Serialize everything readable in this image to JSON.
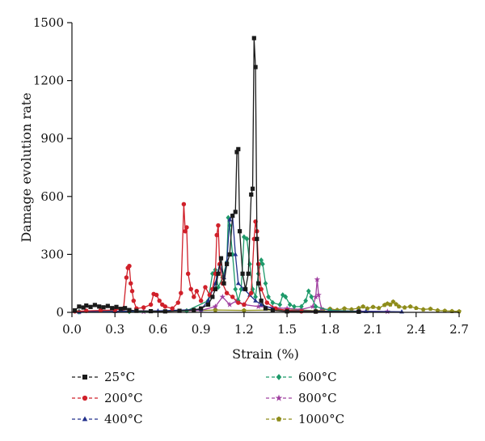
{
  "chart_data": {
    "type": "line",
    "title": "",
    "xlabel": "Strain (%)",
    "ylabel": "Damage evolution rate",
    "xlim": [
      0,
      2.7
    ],
    "ylim": [
      0,
      1500
    ],
    "xticks": [
      "0.0",
      "0.3",
      "0.6",
      "0.9",
      "1.2",
      "1.5",
      "1.8",
      "2.1",
      "2.4",
      "2.7"
    ],
    "yticks": [
      "0",
      "300",
      "600",
      "900",
      "1200",
      "1500"
    ],
    "grid": false,
    "legend_position": "bottom",
    "series": [
      {
        "name": "25°C",
        "color": "#1a1a1a",
        "marker": "square",
        "points": [
          [
            0.02,
            10
          ],
          [
            0.05,
            30
          ],
          [
            0.08,
            25
          ],
          [
            0.1,
            35
          ],
          [
            0.13,
            28
          ],
          [
            0.16,
            38
          ],
          [
            0.19,
            30
          ],
          [
            0.22,
            26
          ],
          [
            0.25,
            33
          ],
          [
            0.28,
            22
          ],
          [
            0.31,
            28
          ],
          [
            0.34,
            18
          ],
          [
            0.37,
            22
          ],
          [
            0.4,
            12
          ],
          [
            0.45,
            8
          ],
          [
            0.55,
            6
          ],
          [
            0.65,
            5
          ],
          [
            0.75,
            8
          ],
          [
            0.85,
            12
          ],
          [
            0.9,
            20
          ],
          [
            0.95,
            40
          ],
          [
            0.98,
            80
          ],
          [
            1.0,
            120
          ],
          [
            1.02,
            200
          ],
          [
            1.04,
            280
          ],
          [
            1.06,
            150
          ],
          [
            1.08,
            250
          ],
          [
            1.1,
            300
          ],
          [
            1.12,
            500
          ],
          [
            1.14,
            520
          ],
          [
            1.15,
            830
          ],
          [
            1.16,
            845
          ],
          [
            1.17,
            420
          ],
          [
            1.19,
            200
          ],
          [
            1.21,
            120
          ],
          [
            1.23,
            200
          ],
          [
            1.25,
            610
          ],
          [
            1.26,
            640
          ],
          [
            1.27,
            1420
          ],
          [
            1.28,
            1270
          ],
          [
            1.29,
            380
          ],
          [
            1.3,
            150
          ],
          [
            1.32,
            60
          ],
          [
            1.35,
            20
          ],
          [
            1.4,
            10
          ],
          [
            1.5,
            5
          ],
          [
            1.7,
            4
          ],
          [
            2.0,
            3
          ]
        ]
      },
      {
        "name": "200°C",
        "color": "#d0202a",
        "marker": "circle",
        "points": [
          [
            0.02,
            5
          ],
          [
            0.1,
            8
          ],
          [
            0.2,
            10
          ],
          [
            0.3,
            12
          ],
          [
            0.36,
            20
          ],
          [
            0.38,
            180
          ],
          [
            0.39,
            230
          ],
          [
            0.4,
            240
          ],
          [
            0.41,
            150
          ],
          [
            0.42,
            110
          ],
          [
            0.43,
            60
          ],
          [
            0.45,
            20
          ],
          [
            0.5,
            25
          ],
          [
            0.55,
            40
          ],
          [
            0.57,
            95
          ],
          [
            0.59,
            90
          ],
          [
            0.61,
            60
          ],
          [
            0.63,
            40
          ],
          [
            0.65,
            30
          ],
          [
            0.7,
            20
          ],
          [
            0.74,
            50
          ],
          [
            0.76,
            100
          ],
          [
            0.78,
            560
          ],
          [
            0.79,
            420
          ],
          [
            0.8,
            440
          ],
          [
            0.81,
            200
          ],
          [
            0.83,
            120
          ],
          [
            0.85,
            80
          ],
          [
            0.87,
            110
          ],
          [
            0.9,
            60
          ],
          [
            0.93,
            130
          ],
          [
            0.96,
            90
          ],
          [
            0.98,
            120
          ],
          [
            1.0,
            200
          ],
          [
            1.01,
            400
          ],
          [
            1.02,
            450
          ],
          [
            1.03,
            250
          ],
          [
            1.05,
            150
          ],
          [
            1.08,
            100
          ],
          [
            1.12,
            80
          ],
          [
            1.16,
            50
          ],
          [
            1.2,
            40
          ],
          [
            1.25,
            100
          ],
          [
            1.27,
            380
          ],
          [
            1.28,
            470
          ],
          [
            1.29,
            420
          ],
          [
            1.3,
            250
          ],
          [
            1.32,
            120
          ],
          [
            1.36,
            50
          ],
          [
            1.42,
            20
          ],
          [
            1.5,
            10
          ],
          [
            1.6,
            5
          ],
          [
            1.7,
            4
          ]
        ]
      },
      {
        "name": "400°C",
        "color": "#23318c",
        "marker": "triangle",
        "points": [
          [
            0.05,
            3
          ],
          [
            0.3,
            5
          ],
          [
            0.6,
            8
          ],
          [
            0.9,
            15
          ],
          [
            0.95,
            60
          ],
          [
            1.0,
            150
          ],
          [
            1.03,
            250
          ],
          [
            1.06,
            180
          ],
          [
            1.08,
            260
          ],
          [
            1.1,
            480
          ],
          [
            1.12,
            500
          ],
          [
            1.14,
            300
          ],
          [
            1.16,
            150
          ],
          [
            1.2,
            120
          ],
          [
            1.24,
            90
          ],
          [
            1.28,
            60
          ],
          [
            1.32,
            40
          ],
          [
            1.4,
            20
          ],
          [
            1.5,
            10
          ],
          [
            1.7,
            6
          ],
          [
            2.0,
            4
          ],
          [
            2.05,
            5
          ],
          [
            2.3,
            3
          ]
        ]
      },
      {
        "name": "600°C",
        "color": "#1e9a6a",
        "marker": "diamond",
        "points": [
          [
            0.05,
            2
          ],
          [
            0.4,
            4
          ],
          [
            0.8,
            8
          ],
          [
            0.95,
            60
          ],
          [
            0.98,
            200
          ],
          [
            1.0,
            220
          ],
          [
            1.02,
            130
          ],
          [
            1.05,
            180
          ],
          [
            1.08,
            260
          ],
          [
            1.09,
            490
          ],
          [
            1.1,
            450
          ],
          [
            1.12,
            300
          ],
          [
            1.14,
            120
          ],
          [
            1.16,
            60
          ],
          [
            1.18,
            120
          ],
          [
            1.2,
            390
          ],
          [
            1.22,
            380
          ],
          [
            1.24,
            250
          ],
          [
            1.26,
            120
          ],
          [
            1.28,
            80
          ],
          [
            1.3,
            200
          ],
          [
            1.32,
            270
          ],
          [
            1.33,
            250
          ],
          [
            1.35,
            150
          ],
          [
            1.37,
            80
          ],
          [
            1.4,
            50
          ],
          [
            1.45,
            40
          ],
          [
            1.47,
            90
          ],
          [
            1.49,
            80
          ],
          [
            1.52,
            40
          ],
          [
            1.55,
            30
          ],
          [
            1.6,
            30
          ],
          [
            1.63,
            60
          ],
          [
            1.65,
            110
          ],
          [
            1.67,
            80
          ],
          [
            1.7,
            30
          ],
          [
            1.8,
            10
          ],
          [
            2.0,
            5
          ]
        ]
      },
      {
        "name": "800°C",
        "color": "#a040a0",
        "marker": "star",
        "points": [
          [
            0.05,
            2
          ],
          [
            0.5,
            4
          ],
          [
            0.9,
            10
          ],
          [
            1.0,
            30
          ],
          [
            1.05,
            80
          ],
          [
            1.1,
            40
          ],
          [
            1.15,
            60
          ],
          [
            1.2,
            40
          ],
          [
            1.3,
            30
          ],
          [
            1.4,
            25
          ],
          [
            1.5,
            20
          ],
          [
            1.6,
            15
          ],
          [
            1.68,
            30
          ],
          [
            1.7,
            80
          ],
          [
            1.71,
            170
          ],
          [
            1.72,
            90
          ],
          [
            1.74,
            20
          ],
          [
            1.8,
            10
          ],
          [
            2.0,
            6
          ],
          [
            2.2,
            4
          ]
        ]
      },
      {
        "name": "1000°C",
        "color": "#8e8c1a",
        "marker": "pentagon",
        "points": [
          [
            0.05,
            4
          ],
          [
            0.4,
            6
          ],
          [
            0.8,
            8
          ],
          [
            1.0,
            12
          ],
          [
            1.2,
            10
          ],
          [
            1.4,
            12
          ],
          [
            1.6,
            12
          ],
          [
            1.7,
            8
          ],
          [
            1.75,
            12
          ],
          [
            1.8,
            18
          ],
          [
            1.85,
            12
          ],
          [
            1.9,
            20
          ],
          [
            1.95,
            15
          ],
          [
            2.0,
            22
          ],
          [
            2.03,
            30
          ],
          [
            2.06,
            20
          ],
          [
            2.1,
            28
          ],
          [
            2.14,
            22
          ],
          [
            2.18,
            38
          ],
          [
            2.2,
            45
          ],
          [
            2.22,
            40
          ],
          [
            2.24,
            55
          ],
          [
            2.26,
            42
          ],
          [
            2.28,
            30
          ],
          [
            2.32,
            25
          ],
          [
            2.36,
            30
          ],
          [
            2.4,
            22
          ],
          [
            2.45,
            15
          ],
          [
            2.5,
            18
          ],
          [
            2.55,
            10
          ],
          [
            2.6,
            8
          ],
          [
            2.65,
            6
          ],
          [
            2.7,
            5
          ]
        ]
      }
    ]
  }
}
